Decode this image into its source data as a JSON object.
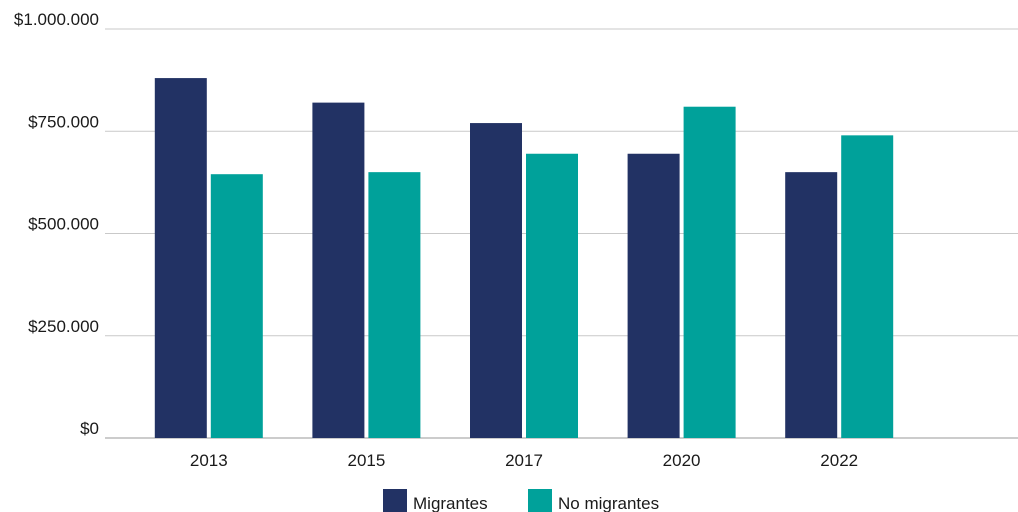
{
  "chart_data": {
    "type": "bar",
    "categories": [
      "2013",
      "2015",
      "2017",
      "2020",
      "2022"
    ],
    "series": [
      {
        "name": "Migrantes",
        "color": "#223264",
        "values": [
          880000,
          820000,
          770000,
          695000,
          650000
        ]
      },
      {
        "name": "No migrantes",
        "color": "#00a19a",
        "values": [
          645000,
          650000,
          695000,
          810000,
          740000
        ]
      }
    ],
    "ylim": [
      0,
      1000000
    ],
    "yticks": [
      0,
      250000,
      500000,
      750000,
      1000000
    ],
    "ytick_labels": [
      "$0",
      "$250.000",
      "$500.000",
      "$750.000",
      "$1.000.000"
    ],
    "grid": true,
    "legend_position": "bottom-center"
  }
}
